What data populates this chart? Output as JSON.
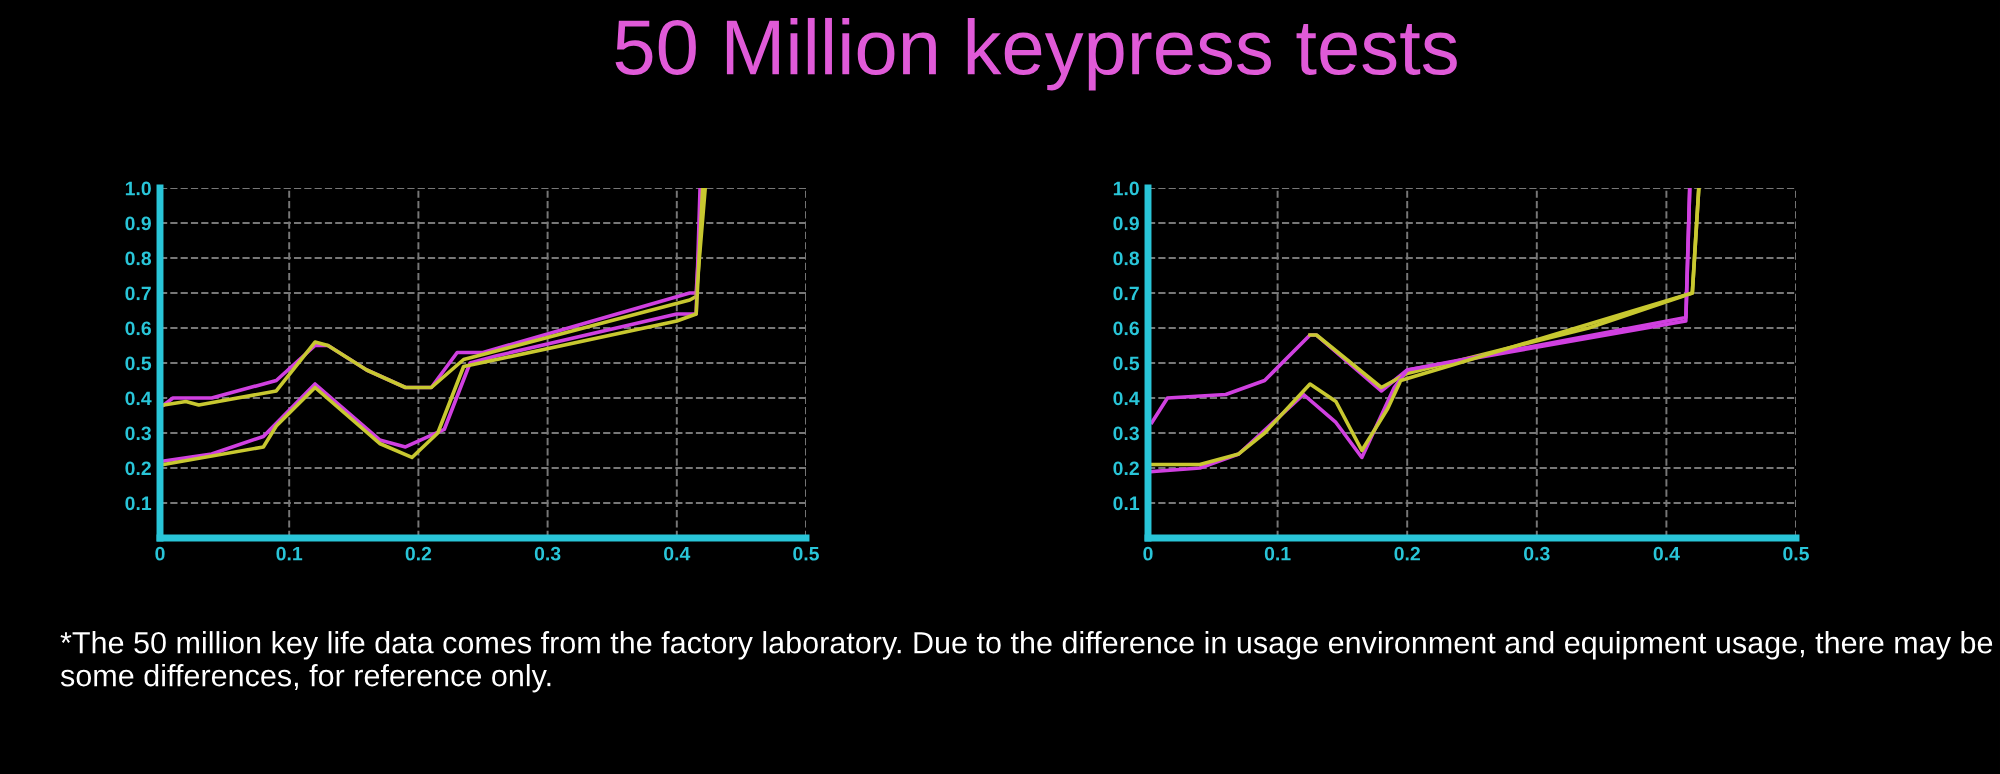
{
  "chart_data": [
    {
      "type": "line",
      "title": "50 Million keypress tests",
      "annotations": [
        "*The 50 million key life data comes from the factory laboratory. Due to the difference in usage environment and equipment usage, there may be some differences, for reference only."
      ],
      "xlim": [
        0,
        0.5
      ],
      "ylim": [
        0,
        1.0
      ],
      "xticks": [
        0,
        0.1,
        0.2,
        0.3,
        0.4,
        0.5
      ],
      "yticks": [
        0.1,
        0.2,
        0.3,
        0.4,
        0.5,
        0.6,
        0.7,
        0.8,
        0.9,
        {
          "value": 1.0,
          "label": "1.0"
        }
      ],
      "grid": true,
      "line_style": "solid",
      "series": [
        {
          "color": "#d040e0",
          "x": [
            0.003,
            0.01,
            0.04,
            0.09,
            0.12,
            0.13,
            0.16,
            0.19,
            0.21,
            0.23,
            0.25,
            0.41,
            0.415,
            0.42
          ],
          "values": [
            0.38,
            0.4,
            0.4,
            0.45,
            0.55,
            0.55,
            0.48,
            0.43,
            0.43,
            0.53,
            0.53,
            0.7,
            0.7,
            1.0
          ]
        },
        {
          "color": "#c8c830",
          "x": [
            0.003,
            0.02,
            0.03,
            0.09,
            0.12,
            0.13,
            0.16,
            0.19,
            0.21,
            0.235,
            0.41,
            0.415,
            0.422
          ],
          "values": [
            0.38,
            0.39,
            0.38,
            0.42,
            0.56,
            0.55,
            0.48,
            0.43,
            0.43,
            0.51,
            0.68,
            0.69,
            1.0
          ]
        },
        {
          "color": "#d040e0",
          "x": [
            0.003,
            0.04,
            0.08,
            0.12,
            0.17,
            0.19,
            0.22,
            0.24,
            0.26,
            0.4,
            0.415,
            0.418
          ],
          "values": [
            0.22,
            0.24,
            0.29,
            0.44,
            0.28,
            0.26,
            0.31,
            0.5,
            0.52,
            0.64,
            0.64,
            1.0
          ]
        },
        {
          "color": "#c8c830",
          "x": [
            0.003,
            0.08,
            0.09,
            0.12,
            0.17,
            0.195,
            0.215,
            0.235,
            0.4,
            0.415,
            0.42
          ],
          "values": [
            0.21,
            0.26,
            0.32,
            0.43,
            0.27,
            0.23,
            0.3,
            0.49,
            0.62,
            0.64,
            1.0
          ]
        }
      ]
    },
    {
      "type": "line",
      "xlim": [
        0,
        0.5
      ],
      "ylim": [
        0,
        1.0
      ],
      "xticks": [
        0,
        0.1,
        0.2,
        0.3,
        0.4,
        0.5
      ],
      "yticks": [
        0.1,
        0.2,
        0.3,
        0.4,
        0.5,
        0.6,
        0.7,
        0.8,
        0.9,
        {
          "value": 1.0,
          "label": "1.0"
        }
      ],
      "grid": true,
      "line_style": "solid",
      "series": [
        {
          "color": "#d040e0",
          "x": [
            0.003,
            0.015,
            0.06,
            0.09,
            0.125,
            0.13,
            0.18,
            0.2,
            0.415,
            0.418
          ],
          "values": [
            0.33,
            0.4,
            0.41,
            0.45,
            0.58,
            0.58,
            0.42,
            0.48,
            0.62,
            1.0
          ]
        },
        {
          "color": "#c8c830",
          "x": [
            0.125,
            0.13,
            0.18,
            0.2,
            0.34,
            0.42,
            0.425
          ],
          "values": [
            0.58,
            0.58,
            0.43,
            0.47,
            0.6,
            0.7,
            1.0
          ]
        },
        {
          "color": "#d040e0",
          "x": [
            0.003,
            0.04,
            0.07,
            0.12,
            0.145,
            0.165,
            0.19,
            0.2,
            0.415,
            0.418
          ],
          "values": [
            0.19,
            0.2,
            0.24,
            0.41,
            0.33,
            0.23,
            0.43,
            0.48,
            0.63,
            1.0
          ]
        },
        {
          "color": "#c8c830",
          "x": [
            0.003,
            0.04,
            0.07,
            0.09,
            0.125,
            0.145,
            0.165,
            0.185,
            0.195,
            0.42,
            0.425
          ],
          "values": [
            0.21,
            0.21,
            0.24,
            0.3,
            0.44,
            0.39,
            0.25,
            0.37,
            0.45,
            0.7,
            1.0
          ]
        }
      ]
    }
  ]
}
